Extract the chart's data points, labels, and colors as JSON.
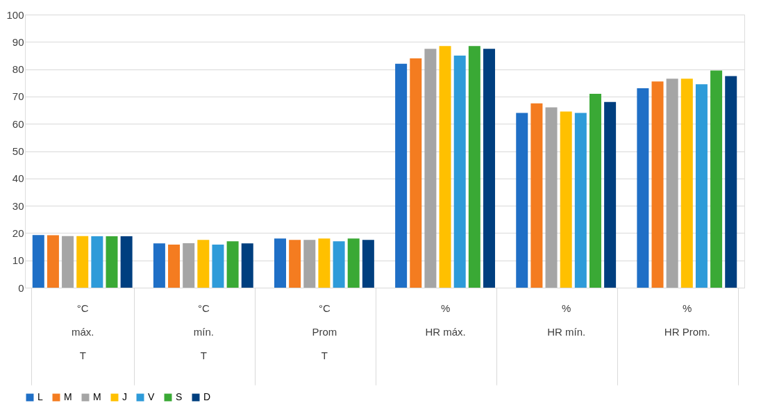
{
  "chart_data": {
    "type": "bar",
    "categories": [
      "°C\nmáx.\nT",
      "°C\nmín.\nT",
      "°C\nProm\nT",
      "%\n\nHR máx.",
      "%\n\nHR mín.",
      "%\n\nHR Prom."
    ],
    "series": [
      {
        "name": "L",
        "color": "#1f6fc6",
        "values": [
          19.3,
          16.2,
          18.0,
          82.0,
          64.0,
          73.0
        ]
      },
      {
        "name": "M",
        "color": "#f47c20",
        "values": [
          19.2,
          15.8,
          17.5,
          84.0,
          67.5,
          75.5
        ]
      },
      {
        "name": "M",
        "color": "#a5a5a5",
        "values": [
          18.9,
          16.3,
          17.5,
          87.5,
          66.0,
          76.5
        ]
      },
      {
        "name": "J",
        "color": "#ffc000",
        "values": [
          18.9,
          17.5,
          18.0,
          88.5,
          64.5,
          76.5
        ]
      },
      {
        "name": "V",
        "color": "#2e9bd9",
        "values": [
          18.8,
          15.8,
          17.0,
          85.0,
          64.0,
          74.5
        ]
      },
      {
        "name": "S",
        "color": "#3aa935",
        "values": [
          18.8,
          17.0,
          18.0,
          88.5,
          71.0,
          79.5
        ]
      },
      {
        "name": "D",
        "color": "#003f7f",
        "values": [
          18.8,
          16.2,
          17.5,
          87.5,
          68.0,
          77.5
        ]
      }
    ],
    "ylim": [
      0,
      100
    ],
    "yticks": [
      0,
      10,
      20,
      30,
      40,
      50,
      60,
      70,
      80,
      90,
      100
    ],
    "grid": "y",
    "legend": "bottom"
  }
}
